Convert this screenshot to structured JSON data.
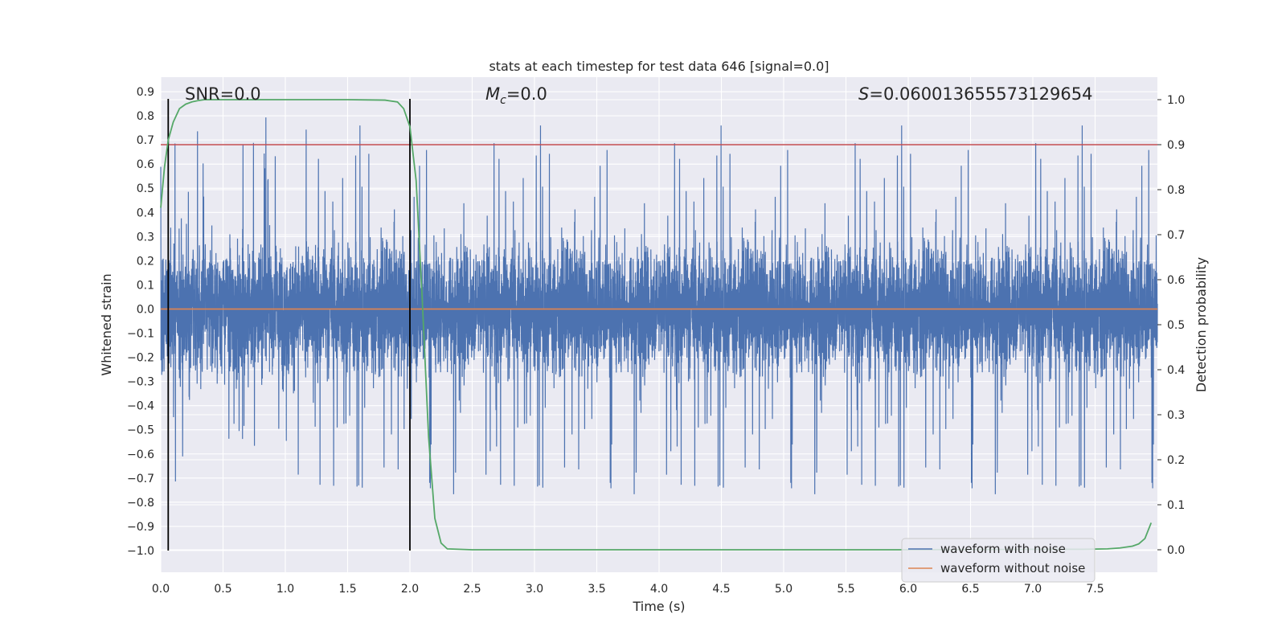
{
  "chart_data": {
    "type": "line",
    "title": "stats at each timestep for test data 646 [signal=0.0]",
    "xlabel": "Time (s)",
    "ylabel_left": "Whitened strain",
    "ylabel_right": "Detection probability",
    "xlim": [
      0.0,
      8.0
    ],
    "ylim_left": [
      -1.09,
      0.96
    ],
    "ylim_right": [
      -0.05,
      1.05
    ],
    "x_ticks": [
      "0.0",
      "0.5",
      "1.0",
      "1.5",
      "2.0",
      "2.5",
      "3.0",
      "3.5",
      "4.0",
      "4.5",
      "5.0",
      "5.5",
      "6.0",
      "6.5",
      "7.0",
      "7.5"
    ],
    "x_tick_values": [
      0.0,
      0.5,
      1.0,
      1.5,
      2.0,
      2.5,
      3.0,
      3.5,
      4.0,
      4.5,
      5.0,
      5.5,
      6.0,
      6.5,
      7.0,
      7.5
    ],
    "y_left_ticks": [
      "0.9",
      "0.8",
      "0.7",
      "0.6",
      "0.5",
      "0.4",
      "0.3",
      "0.2",
      "0.1",
      "0.0",
      "−0.1",
      "−0.2",
      "−0.3",
      "−0.4",
      "−0.5",
      "−0.6",
      "−0.7",
      "−0.8",
      "−0.9",
      "−1.0"
    ],
    "y_left_tick_values": [
      0.9,
      0.8,
      0.7,
      0.6,
      0.5,
      0.4,
      0.3,
      0.2,
      0.1,
      0.0,
      -0.1,
      -0.2,
      -0.3,
      -0.4,
      -0.5,
      -0.6,
      -0.7,
      -0.8,
      -0.9,
      -1.0
    ],
    "y_right_ticks": [
      "1.0",
      "0.9",
      "0.8",
      "0.7",
      "0.6",
      "0.5",
      "0.4",
      "0.3",
      "0.2",
      "0.1",
      "0.0"
    ],
    "y_right_tick_values": [
      1.0,
      0.9,
      0.8,
      0.7,
      0.6,
      0.5,
      0.4,
      0.3,
      0.2,
      0.1,
      0.0
    ],
    "annotations": {
      "snr": "SNR=0.0",
      "mc": "=0.0",
      "mc_symbol": "M",
      "mc_sub": "c",
      "s": "=0.060013655573129654",
      "s_symbol": "S"
    },
    "threshold_probability": 0.9,
    "vertical_markers": [
      0.06,
      2.0
    ],
    "series": [
      {
        "name": "waveform with noise",
        "color": "#4c72b0",
        "kind": "noise",
        "n_samples": 8192,
        "core_amplitude": 0.33,
        "max_value": 0.87,
        "min_value": -1.0
      },
      {
        "name": "waveform without noise",
        "color": "#dd8452",
        "constant": 0.0
      },
      {
        "color": "#55a868",
        "axis": "right",
        "x": [
          0.0,
          0.03,
          0.06,
          0.1,
          0.15,
          0.2,
          0.25,
          0.3,
          0.35,
          0.4,
          0.5,
          0.75,
          1.0,
          1.5,
          1.8,
          1.9,
          1.95,
          2.0,
          2.05,
          2.1,
          2.15,
          2.2,
          2.25,
          2.3,
          2.5,
          3.0,
          4.0,
          5.0,
          6.0,
          7.0,
          7.4,
          7.6,
          7.7,
          7.8,
          7.85,
          7.9,
          7.95
        ],
        "y": [
          0.76,
          0.85,
          0.91,
          0.95,
          0.98,
          0.99,
          0.995,
          0.998,
          1.0,
          1.0,
          1.0,
          1.0,
          1.0,
          1.0,
          0.999,
          0.995,
          0.98,
          0.94,
          0.82,
          0.55,
          0.25,
          0.07,
          0.015,
          0.002,
          0.0,
          0.0,
          0.0,
          0.0,
          0.0,
          0.001,
          0.001,
          0.002,
          0.004,
          0.008,
          0.013,
          0.025,
          0.06
        ]
      },
      {
        "color": "#c44e52",
        "axis": "right",
        "constant": 0.9
      }
    ],
    "legend_position": "lower-right",
    "grid": true
  }
}
